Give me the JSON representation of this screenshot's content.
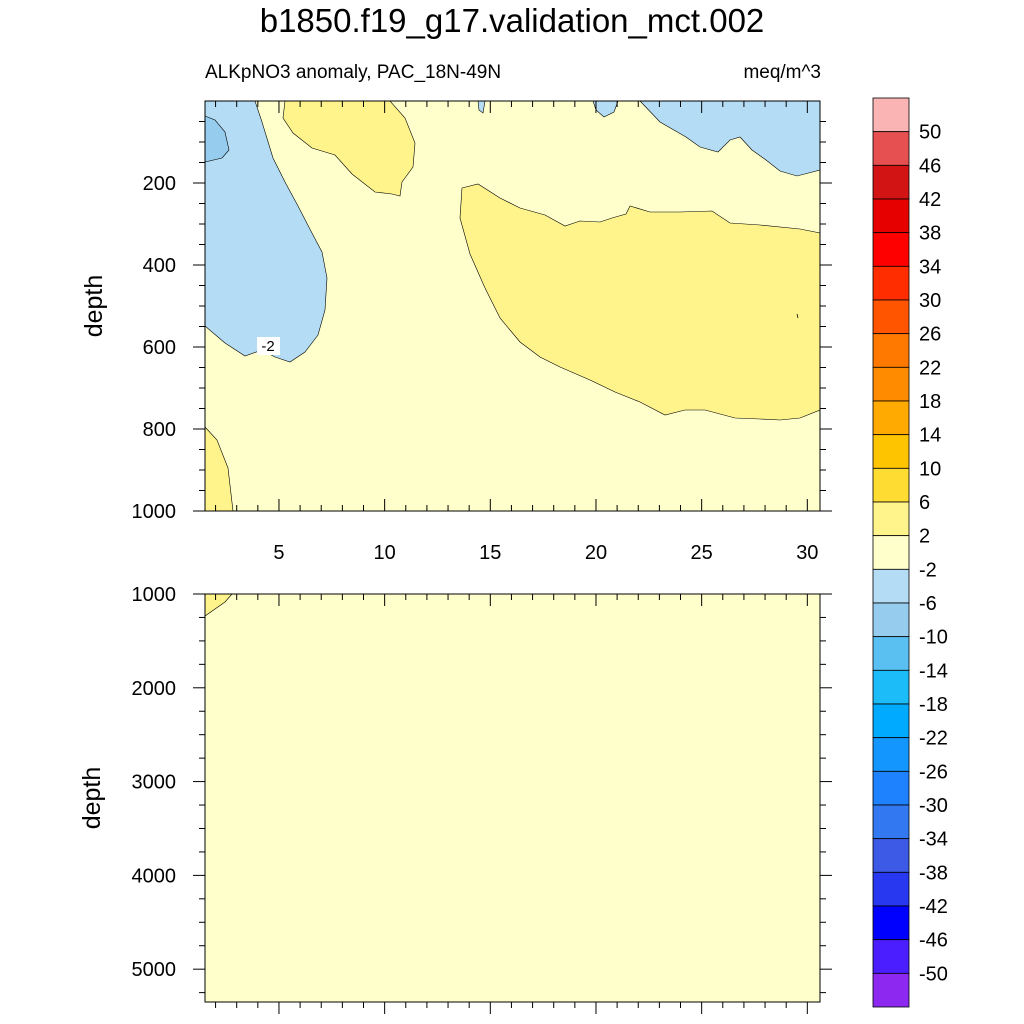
{
  "figure": {
    "title": "b1850.f19_g17.validation_mct.002",
    "variable_label": "ALKpNO3 anomaly, PAC_18N-49N",
    "units_label": "meq/m^3",
    "contour_label": "-2"
  },
  "chart_data": [
    {
      "type": "heatmap",
      "panel": "upper",
      "ylabel": "depth",
      "xlabel": "",
      "xlim": [
        1.5,
        30.6
      ],
      "ylim": [
        1000,
        0
      ],
      "x_ticks": [
        5,
        10,
        15,
        20,
        25,
        30
      ],
      "y_ticks": [
        200,
        400,
        600,
        800,
        1000
      ],
      "background_level": "-2 to 2",
      "regions": [
        {
          "level": "2 to 6",
          "where": "x 13.5-30.5, depth 190-780"
        },
        {
          "level": "2 to 6",
          "where": "x 5-11, depth 0-225"
        },
        {
          "level": "2 to 6",
          "where": "x 1.5-2.8, depth 820-1000"
        },
        {
          "level": "-6 to -2",
          "where": "x 1.5-7.3, depth 0-630"
        },
        {
          "level": "-6 to -2",
          "where": "x 21.4-30.5, depth 0-190"
        },
        {
          "level": "-10 to -6",
          "where": "x 1.5-2.5, depth 35-140"
        }
      ]
    },
    {
      "type": "heatmap",
      "panel": "lower",
      "ylabel": "depth",
      "xlabel": "",
      "xlim": [
        1.5,
        30.6
      ],
      "ylim": [
        5350,
        1000
      ],
      "y_ticks": [
        1000,
        2000,
        3000,
        4000,
        5000
      ],
      "background_level": "-2 to 2",
      "regions": [
        {
          "level": "2 to 6",
          "where": "x 1.5-2.8, depth 1000-1230"
        }
      ]
    }
  ],
  "colorbar": {
    "labels": [
      "50",
      "46",
      "42",
      "38",
      "34",
      "30",
      "26",
      "22",
      "18",
      "14",
      "10",
      "6",
      "2",
      "-2",
      "-6",
      "-10",
      "-14",
      "-18",
      "-22",
      "-26",
      "-30",
      "-34",
      "-38",
      "-42",
      "-46",
      "-50"
    ],
    "colors": [
      "#fab4b4",
      "#e65050",
      "#d21414",
      "#e60000",
      "#ff0000",
      "#ff2d00",
      "#ff5500",
      "#ff7800",
      "#ff8c00",
      "#ffaa00",
      "#ffc400",
      "#ffdc32",
      "#fff48c",
      "#ffffcc",
      "#b4dcf4",
      "#96ccee",
      "#5ac0f2",
      "#1cbcf8",
      "#00aaff",
      "#1496ff",
      "#1e82ff",
      "#3278f0",
      "#3c5ae6",
      "#2837f0",
      "#0000ff",
      "#4b1eff",
      "#8c28f0"
    ]
  }
}
